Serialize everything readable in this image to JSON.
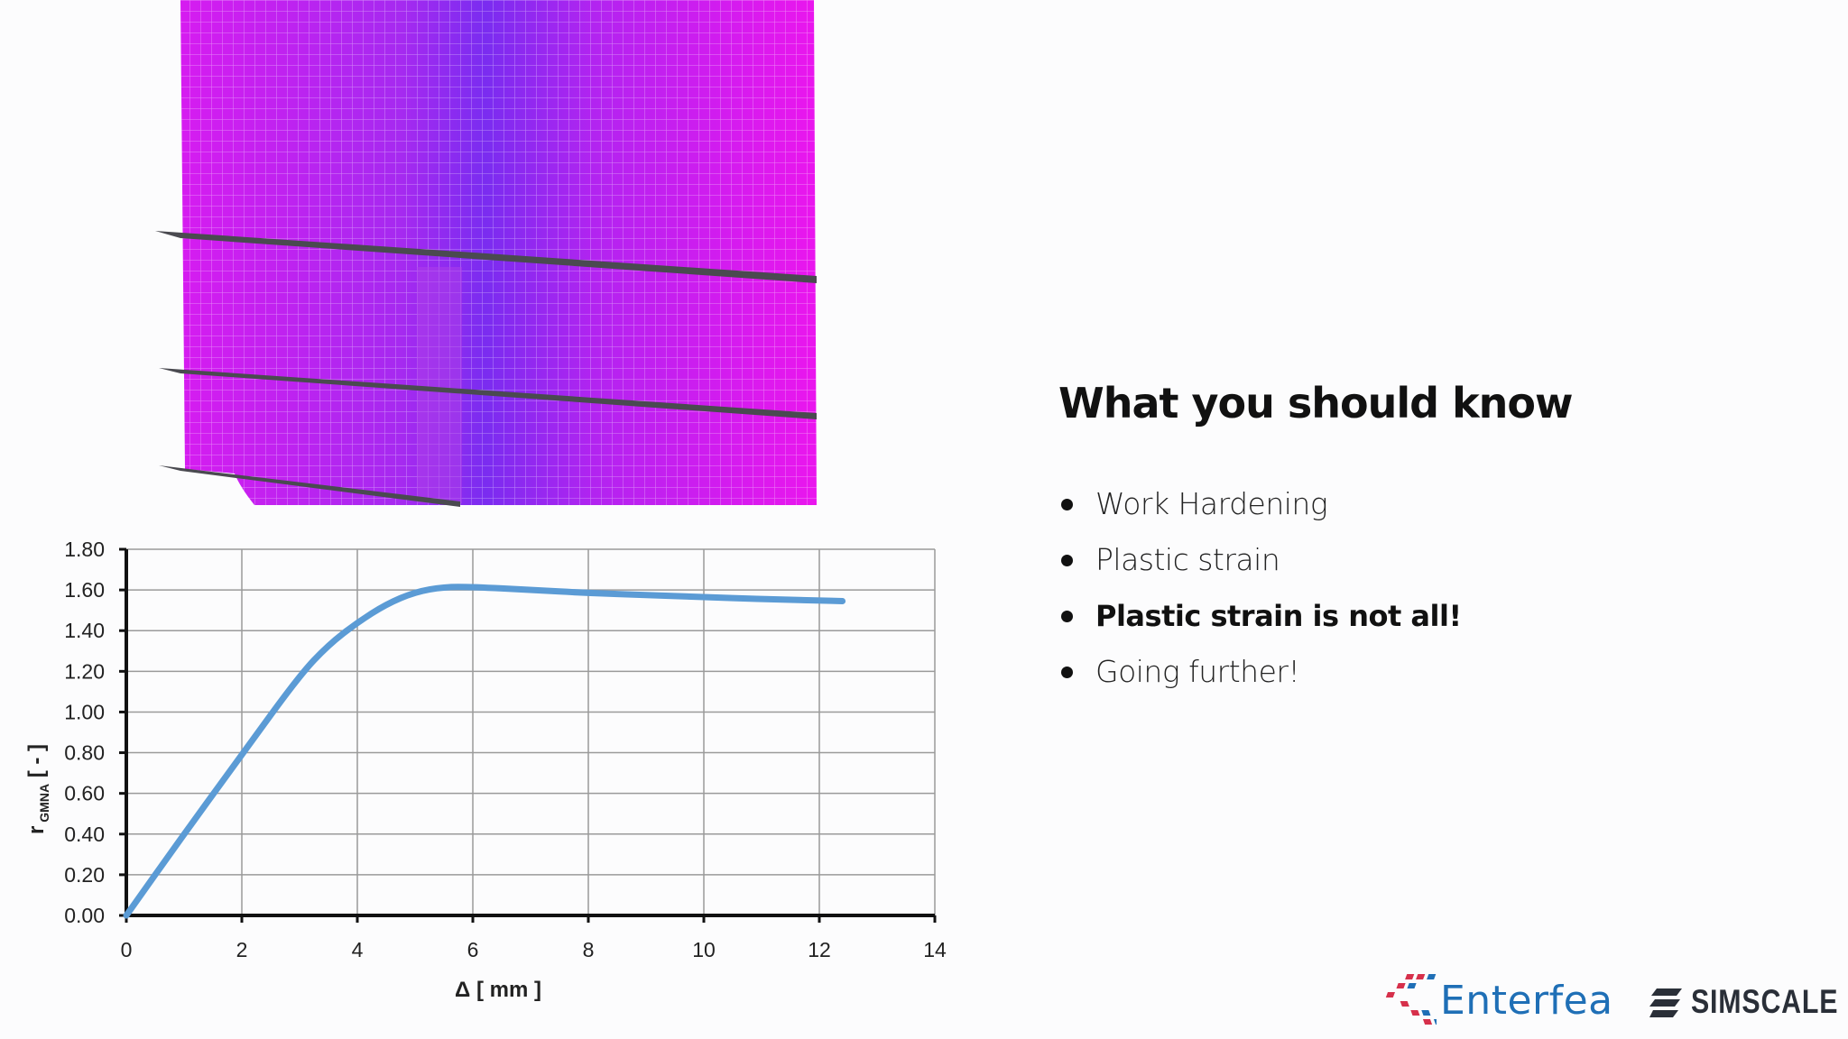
{
  "slide": {
    "title": "What you should know",
    "bullets": [
      {
        "text": "Work Hardening",
        "bold": false
      },
      {
        "text": "Plastic strain",
        "bold": false
      },
      {
        "text": "Plastic strain is not all!",
        "bold": true
      },
      {
        "text": "Going further!",
        "bold": false
      }
    ]
  },
  "logos": {
    "enterfea": "Enterfea",
    "simscale": "SIMSCALE"
  },
  "colors": {
    "line": "#5b9bd5",
    "brand_blue": "#1f6fb6",
    "brand_red": "#d6304b",
    "mesh_magenta": "#e619f0",
    "mesh_violet": "#8a28f0"
  },
  "chart_data": {
    "type": "line",
    "xlabel": "Δ [ mm ]",
    "ylabel_main": "r",
    "ylabel_sub": "GMNA",
    "ylabel_unit": " [ - ]",
    "xlim": [
      0,
      14
    ],
    "ylim": [
      0,
      1.8
    ],
    "xticks": [
      "0",
      "2",
      "4",
      "6",
      "8",
      "10",
      "12",
      "14"
    ],
    "yticks": [
      "0.00",
      "0.20",
      "0.40",
      "0.60",
      "0.80",
      "1.00",
      "1.20",
      "1.40",
      "1.60",
      "1.80"
    ],
    "grid": true,
    "series": [
      {
        "x": [
          0,
          1,
          2,
          3,
          3.5,
          4,
          4.5,
          5,
          5.5,
          6,
          7,
          8,
          9,
          10,
          11,
          12,
          12.4
        ],
        "y": [
          0,
          0.4,
          0.79,
          1.18,
          1.33,
          1.44,
          1.53,
          1.59,
          1.615,
          1.615,
          1.6,
          1.585,
          1.575,
          1.565,
          1.555,
          1.548,
          1.545
        ]
      }
    ]
  }
}
